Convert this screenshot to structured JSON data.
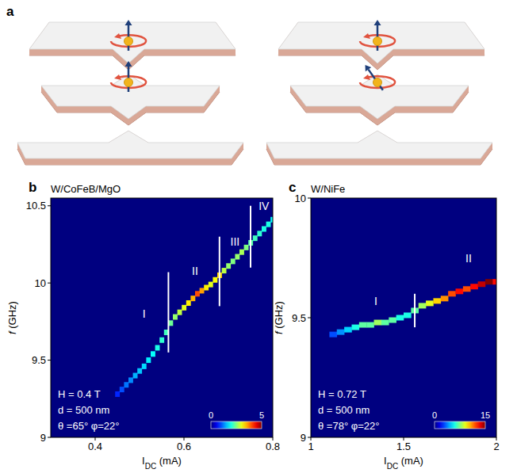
{
  "diagram": {
    "label": "a"
  },
  "chart_data": [
    {
      "panel": "b",
      "type": "heatmap",
      "title": "W/CoFeB/MgO",
      "xlabel": [
        {
          "text": "I"
        },
        {
          "text": "DC",
          "sub": true
        },
        {
          "text": " (mA)"
        }
      ],
      "ylabel": [
        {
          "text": "f",
          "italic": true
        },
        {
          "text": " (GHz)"
        }
      ],
      "xlim": [
        0.3,
        0.8
      ],
      "xticks": [
        0.4,
        0.6,
        0.8
      ],
      "ylim": [
        9,
        10.55
      ],
      "yticks": [
        9,
        9.5,
        10,
        10.5
      ],
      "x": [
        0.45,
        0.46,
        0.47,
        0.48,
        0.49,
        0.5,
        0.51,
        0.52,
        0.53,
        0.54,
        0.55,
        0.56,
        0.57,
        0.58,
        0.59,
        0.6,
        0.61,
        0.62,
        0.63,
        0.64,
        0.65,
        0.66,
        0.67,
        0.68,
        0.69,
        0.7,
        0.71,
        0.72,
        0.73,
        0.74,
        0.75,
        0.76,
        0.77,
        0.78,
        0.79,
        0.8
      ],
      "y": [
        9.28,
        9.31,
        9.34,
        9.37,
        9.4,
        9.43,
        9.46,
        9.5,
        9.54,
        9.58,
        9.63,
        9.68,
        9.74,
        9.78,
        9.81,
        9.84,
        9.87,
        9.9,
        9.93,
        9.95,
        9.97,
        9.99,
        10.02,
        10.05,
        10.08,
        10.11,
        10.14,
        10.17,
        10.2,
        10.23,
        10.26,
        10.29,
        10.32,
        10.35,
        10.38,
        10.41
      ],
      "intensity": [
        0.8,
        1,
        1.2,
        1.3,
        1.5,
        1.6,
        1.7,
        1.8,
        1.9,
        2,
        2.1,
        2.2,
        2.4,
        2.6,
        2.8,
        3,
        3.2,
        3.5,
        4,
        3.6,
        3.2,
        3,
        3.1,
        3.3,
        2.8,
        2.6,
        2.5,
        2.6,
        2.7,
        2.5,
        2.3,
        2.2,
        2.1,
        2,
        2,
        1.9
      ],
      "colorbar": {
        "range": [
          0,
          5
        ],
        "ticks": [
          0,
          5
        ]
      },
      "annotations": [
        "H = 0.4 T",
        "d = 500 nm",
        "θ =65° φ=22°"
      ],
      "regions": [
        {
          "label": "I",
          "x": 0.51,
          "y": 9.8
        },
        {
          "label": "II",
          "x": 0.625,
          "y": 10.08
        },
        {
          "label": "III",
          "x": 0.715,
          "y": 10.27
        },
        {
          "label": "IV",
          "x": 0.78,
          "y": 10.5
        }
      ],
      "boundaries": [
        {
          "x": 0.565,
          "y": [
            9.55,
            10.07
          ]
        },
        {
          "x": 0.68,
          "y": [
            9.85,
            10.3
          ]
        },
        {
          "x": 0.75,
          "y": [
            10.1,
            10.5
          ]
        }
      ]
    },
    {
      "panel": "c",
      "type": "heatmap",
      "title": "W/NiFe",
      "xlabel": [
        {
          "text": "I"
        },
        {
          "text": "DC",
          "sub": true
        },
        {
          "text": " (mA)"
        }
      ],
      "ylabel": [
        {
          "text": "f",
          "italic": true
        },
        {
          "text": " (GHz)"
        }
      ],
      "xlim": [
        1,
        2
      ],
      "xticks": [
        1,
        1.5,
        2
      ],
      "ylim": [
        9,
        10
      ],
      "yticks": [
        9,
        9.5,
        10
      ],
      "x": [
        1.12,
        1.16,
        1.2,
        1.24,
        1.28,
        1.32,
        1.36,
        1.4,
        1.44,
        1.48,
        1.52,
        1.56,
        1.6,
        1.64,
        1.68,
        1.72,
        1.76,
        1.8,
        1.84,
        1.88,
        1.92,
        1.96,
        2
      ],
      "y": [
        9.43,
        9.44,
        9.45,
        9.46,
        9.47,
        9.47,
        9.48,
        9.48,
        9.49,
        9.5,
        9.51,
        9.53,
        9.55,
        9.56,
        9.57,
        9.58,
        9.6,
        9.61,
        9.62,
        9.63,
        9.64,
        9.65,
        9.65
      ],
      "intensity": [
        3,
        4,
        5,
        6,
        7,
        7,
        8,
        7,
        7,
        6,
        6,
        7,
        8,
        9,
        10,
        11,
        12,
        13,
        12,
        13,
        14,
        15,
        13
      ],
      "colorbar": {
        "range": [
          0,
          15
        ],
        "ticks": [
          0,
          15
        ]
      },
      "annotations": [
        "H = 0.72 T",
        "d = 500 nm",
        "θ =78° φ=22°"
      ],
      "regions": [
        {
          "label": "I",
          "x": 1.35,
          "y": 9.57
        },
        {
          "label": "II",
          "x": 1.85,
          "y": 9.75
        }
      ],
      "boundaries": [
        {
          "x": 1.56,
          "y": [
            9.46,
            9.6
          ]
        }
      ]
    }
  ]
}
